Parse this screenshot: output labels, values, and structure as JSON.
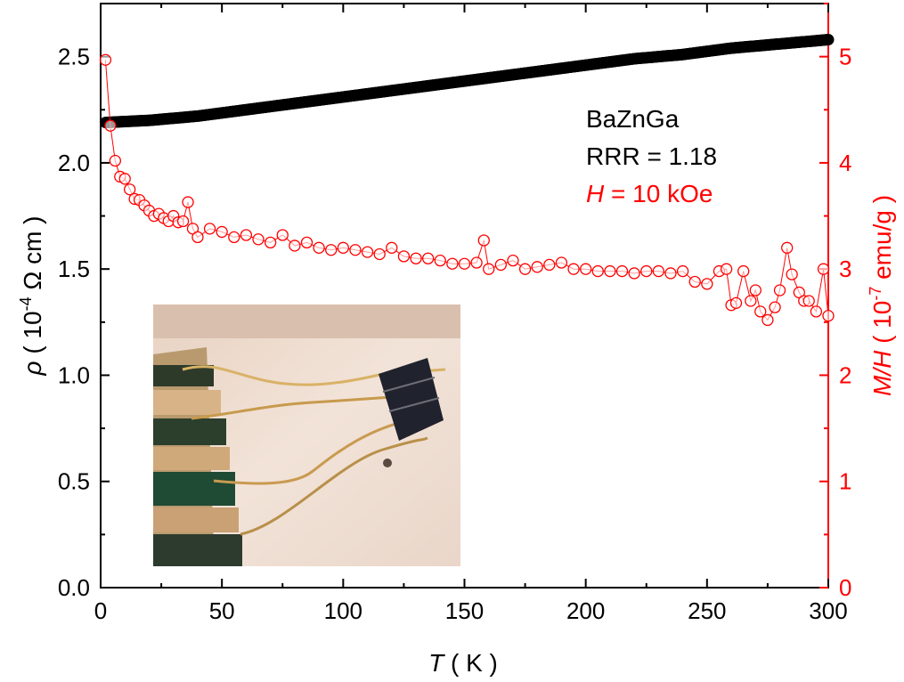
{
  "chart_data": {
    "type": "scatter",
    "title": "",
    "xlabel": {
      "symbol": "T",
      "unit": " ( K )"
    },
    "ylabel_left": {
      "symbol": "ρ",
      "pre": " ( 10",
      "exp": "-4",
      "post": " Ω cm )"
    },
    "ylabel_right": {
      "symbol": "M/H",
      "pre": " ( 10",
      "exp": "-7",
      "post": " emu/g )"
    },
    "xlim": [
      0,
      300
    ],
    "ylim_left": [
      0,
      2.75
    ],
    "ylim_right": [
      0,
      5.5
    ],
    "x_ticks": [
      "0",
      "50",
      "100",
      "150",
      "200",
      "250",
      "300"
    ],
    "y_left_ticks": [
      "0.0",
      "0.5",
      "1.0",
      "1.5",
      "2.0",
      "2.5"
    ],
    "y_right_ticks": [
      "0",
      "1",
      "2",
      "3",
      "4",
      "5"
    ],
    "colors": {
      "resistivity": "#000000",
      "magnetization": "#ff0000"
    },
    "annotations": {
      "sample": "BaZnGa",
      "rrr": "RRR = 1.18",
      "field_symbol": "H",
      "field_value": " = 10 kOe"
    },
    "inset": "photo of sample with four wire contacts",
    "series": [
      {
        "axis": "left",
        "marker": "filled-circle",
        "x": [
          2,
          20,
          40,
          60,
          80,
          100,
          120,
          140,
          160,
          180,
          200,
          220,
          240,
          260,
          280,
          300
        ],
        "values": [
          2.19,
          2.2,
          2.22,
          2.25,
          2.28,
          2.31,
          2.34,
          2.37,
          2.4,
          2.43,
          2.46,
          2.49,
          2.51,
          2.54,
          2.56,
          2.58
        ]
      },
      {
        "axis": "right",
        "marker": "open-circle",
        "x": [
          2,
          4,
          6,
          8,
          10,
          12,
          14,
          16,
          18,
          20,
          22,
          24,
          26,
          28,
          30,
          32,
          34,
          36,
          38,
          40,
          45,
          50,
          55,
          60,
          65,
          70,
          75,
          80,
          85,
          90,
          95,
          100,
          105,
          110,
          115,
          120,
          125,
          130,
          135,
          140,
          145,
          150,
          155,
          158,
          160,
          165,
          170,
          175,
          180,
          185,
          190,
          195,
          200,
          205,
          210,
          215,
          220,
          225,
          230,
          235,
          240,
          245,
          250,
          255,
          258,
          260,
          262,
          265,
          268,
          270,
          272,
          275,
          278,
          280,
          283,
          285,
          288,
          290,
          292,
          295,
          298,
          300
        ],
        "values": [
          4.97,
          4.35,
          4.02,
          3.87,
          3.85,
          3.75,
          3.66,
          3.65,
          3.6,
          3.55,
          3.5,
          3.52,
          3.48,
          3.45,
          3.5,
          3.44,
          3.45,
          3.63,
          3.38,
          3.3,
          3.38,
          3.35,
          3.3,
          3.32,
          3.28,
          3.25,
          3.32,
          3.22,
          3.25,
          3.2,
          3.18,
          3.2,
          3.18,
          3.16,
          3.14,
          3.2,
          3.12,
          3.1,
          3.1,
          3.08,
          3.05,
          3.05,
          3.06,
          3.27,
          3.0,
          3.04,
          3.08,
          3.0,
          3.02,
          3.04,
          3.06,
          3.0,
          3.0,
          2.98,
          2.98,
          2.98,
          2.96,
          2.98,
          2.98,
          2.96,
          2.98,
          2.88,
          2.86,
          2.98,
          3.0,
          2.66,
          2.68,
          2.98,
          2.7,
          2.8,
          2.6,
          2.52,
          2.64,
          2.8,
          3.2,
          2.95,
          2.78,
          2.7,
          2.7,
          2.6,
          3.0,
          2.56
        ]
      }
    ]
  }
}
